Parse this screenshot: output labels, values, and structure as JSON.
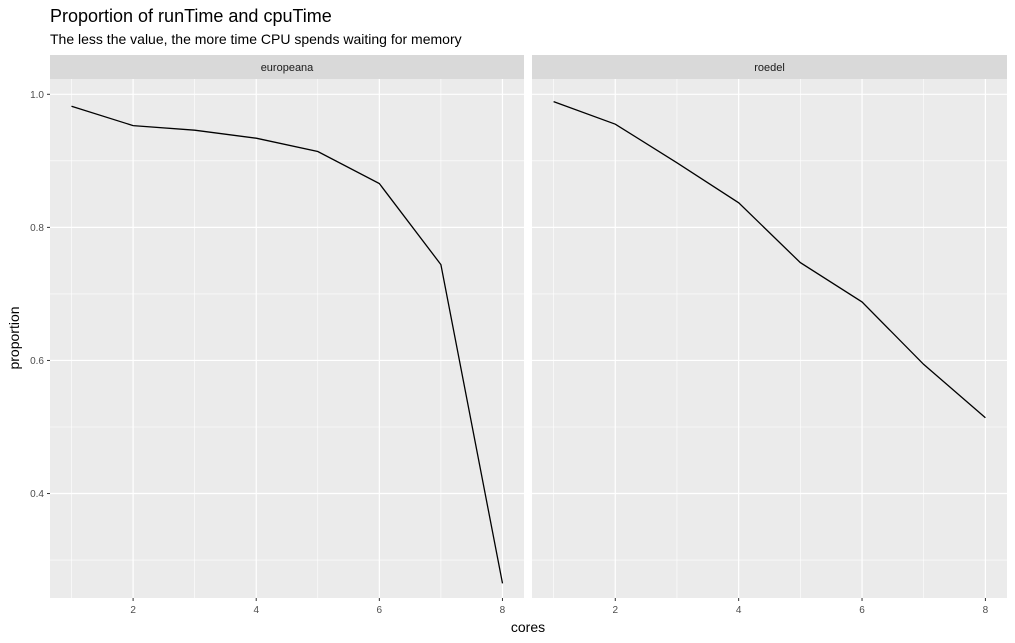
{
  "chart_data": {
    "type": "line",
    "title": "Proportion of runTime and cpuTime",
    "subtitle": "The less the value, the more time CPU spends waiting for memory",
    "xlabel": "cores",
    "ylabel": "proportion",
    "xlim": [
      0.65,
      8.35
    ],
    "ylim": [
      0.243,
      1.023
    ],
    "x_ticks": [
      2,
      4,
      6,
      8
    ],
    "x_tick_labels": [
      "2",
      "4",
      "6",
      "8"
    ],
    "y_ticks": [
      0.4,
      0.6,
      0.8,
      1.0
    ],
    "y_tick_labels": [
      "0.4",
      "0.6",
      "0.8",
      "1.0"
    ],
    "x": [
      1,
      2,
      3,
      4,
      5,
      6,
      7,
      8
    ],
    "facets": [
      {
        "name": "europeana",
        "values": [
          0.982,
          0.953,
          0.946,
          0.934,
          0.914,
          0.866,
          0.744,
          0.265
        ]
      },
      {
        "name": "roedel",
        "values": [
          0.989,
          0.955,
          0.897,
          0.837,
          0.747,
          0.688,
          0.594,
          0.514
        ]
      }
    ],
    "colors": {
      "panel": "#ebebeb",
      "strip": "#d9d9d9",
      "grid": "#ffffff",
      "line": "#000000"
    }
  }
}
